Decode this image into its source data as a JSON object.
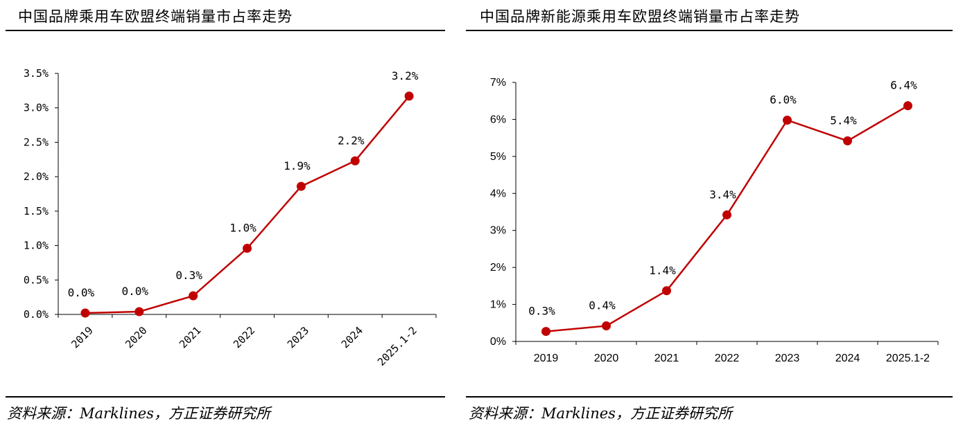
{
  "charts": [
    {
      "title": "中国品牌乘用车欧盟终端销量市占率走势",
      "source": "资料来源：Marklines，方正证券研究所"
    },
    {
      "title": "中国品牌新能源乘用车欧盟终端销量市占率走势",
      "source": "资料来源：Marklines，方正证券研究所"
    }
  ],
  "colors": {
    "series": "#c00000",
    "axis": "#000000"
  },
  "chart_data": [
    {
      "type": "line",
      "title": "中国品牌乘用车欧盟终端销量市占率走势",
      "categories": [
        "2019",
        "2020",
        "2021",
        "2022",
        "2023",
        "2024",
        "2025.1-2"
      ],
      "series": [
        {
          "values": [
            0.02,
            0.04,
            0.27,
            0.96,
            1.86,
            2.23,
            3.17
          ],
          "data_labels": [
            "0.0%",
            "0.0%",
            "0.3%",
            "1.0%",
            "1.9%",
            "2.2%",
            "3.2%"
          ]
        }
      ],
      "ylim": [
        0,
        3.5
      ],
      "yticks": [
        0,
        0.5,
        1.0,
        1.5,
        2.0,
        2.5,
        3.0,
        3.5
      ],
      "ytick_labels": [
        "0.0%",
        "0.5%",
        "1.0%",
        "1.5%",
        "2.0%",
        "2.5%",
        "3.0%",
        "3.5%"
      ],
      "xtick_rotation": -45,
      "grid": false,
      "legend": "none"
    },
    {
      "type": "line",
      "title": "中国品牌新能源乘用车欧盟终端销量市占率走势",
      "categories": [
        "2019",
        "2020",
        "2021",
        "2022",
        "2023",
        "2024",
        "2025.1-2"
      ],
      "series": [
        {
          "values": [
            0.27,
            0.42,
            1.37,
            3.42,
            5.98,
            5.42,
            6.37
          ],
          "data_labels": [
            "0.3%",
            "0.4%",
            "1.4%",
            "3.4%",
            "6.0%",
            "5.4%",
            "6.4%"
          ]
        }
      ],
      "ylim": [
        0,
        7
      ],
      "yticks": [
        0,
        1,
        2,
        3,
        4,
        5,
        6,
        7
      ],
      "ytick_labels": [
        "0%",
        "1%",
        "2%",
        "3%",
        "4%",
        "5%",
        "6%",
        "7%"
      ],
      "xtick_rotation": 0,
      "grid": false,
      "legend": "none"
    }
  ]
}
